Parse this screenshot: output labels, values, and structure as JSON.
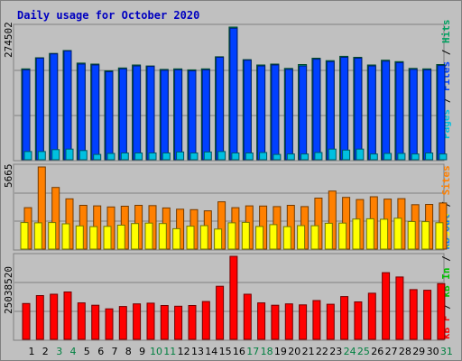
{
  "title": "Daily usage for October 2020",
  "colors": {
    "pages": "#00c0e0",
    "files": "#0040ff",
    "hits": "#00a060",
    "visits": "#ffff00",
    "sites": "#ff8000",
    "kbin": "#00c000",
    "kbout": "#0080ff",
    "kbf": "#ff0000",
    "weekday_label": "#000000",
    "weekend_label": "#008040"
  },
  "legend_top": [
    {
      "text": "Pages",
      "color_key": "pages"
    },
    {
      "text": " / ",
      "color_key": "sep"
    },
    {
      "text": "Files",
      "color_key": "files"
    },
    {
      "text": " / ",
      "color_key": "sep"
    },
    {
      "text": "Hits",
      "color_key": "hits"
    }
  ],
  "legend_middle": [
    {
      "text": "Visits",
      "color_key": "visits"
    },
    {
      "text": " / ",
      "color_key": "sep"
    },
    {
      "text": "Sites",
      "color_key": "sites"
    }
  ],
  "legend_bottom": [
    {
      "text": "kB F",
      "color_key": "kbf"
    },
    {
      "text": " / ",
      "color_key": "sep"
    },
    {
      "text": "kB In",
      "color_key": "kbin"
    },
    {
      "text": " / ",
      "color_key": "sep"
    },
    {
      "text": "kB Out",
      "color_key": "kbout"
    }
  ],
  "chart_data": {
    "type": "bar",
    "title": "Daily usage for October 2020",
    "x": [
      "1",
      "2",
      "3",
      "4",
      "5",
      "6",
      "7",
      "8",
      "9",
      "10",
      "11",
      "12",
      "13",
      "14",
      "15",
      "16",
      "17",
      "18",
      "19",
      "20",
      "21",
      "22",
      "23",
      "24",
      "25",
      "26",
      "27",
      "28",
      "29",
      "30",
      "31"
    ],
    "weekend_days": [
      "3",
      "4",
      "10",
      "11",
      "17",
      "18",
      "24",
      "25",
      "31"
    ],
    "panels": [
      {
        "ymax_label": "274502",
        "ylim": [
          0,
          274502
        ],
        "series": [
          {
            "name": "Hits",
            "color_key": "hits",
            "values": [
              188000,
              211000,
              220000,
              226000,
              200000,
              198000,
              184000,
              190000,
              196000,
              194000,
              187000,
              188000,
              186000,
              188000,
              213000,
              274502,
              207000,
              196000,
              198000,
              189000,
              197000,
              210000,
              205000,
              214000,
              212000,
              196000,
              206000,
              203000,
              189000,
              188000,
              197000
            ]
          },
          {
            "name": "Files",
            "color_key": "files",
            "values": [
              186000,
              210000,
              219000,
              225000,
              198000,
              196000,
              182000,
              188000,
              194000,
              193000,
              185000,
              186000,
              184000,
              186000,
              212000,
              272000,
              206000,
              194000,
              196000,
              187000,
              194000,
              208000,
              203000,
              212000,
              210000,
              194000,
              204000,
              201000,
              187000,
              186000,
              195000
            ]
          },
          {
            "name": "Pages",
            "color_key": "pages",
            "values": [
              17000,
              17000,
              21000,
              22000,
              19000,
              11000,
              13000,
              14000,
              14000,
              14000,
              14000,
              16000,
              14000,
              16000,
              17000,
              14000,
              14000,
              15000,
              11000,
              12000,
              12000,
              15000,
              22000,
              20000,
              22000,
              12000,
              13000,
              13000,
              12000,
              14000,
              12000
            ]
          }
        ]
      },
      {
        "ymax_label": "5665",
        "ylim": [
          0,
          5665
        ],
        "series": [
          {
            "name": "Sites",
            "color_key": "sites",
            "values": [
              2860,
              5665,
              4250,
              3470,
              3020,
              2980,
              2910,
              2960,
              3020,
              3000,
              2840,
              2750,
              2720,
              2640,
              3260,
              2860,
              2980,
              2970,
              2930,
              3020,
              2930,
              3520,
              4000,
              3570,
              3420,
              3610,
              3450,
              3480,
              3060,
              3080,
              3180
            ]
          },
          {
            "name": "Visits",
            "color_key": "visits",
            "values": [
              1830,
              1810,
              1830,
              1740,
              1600,
              1550,
              1570,
              1650,
              1760,
              1790,
              1760,
              1410,
              1580,
              1620,
              1380,
              1810,
              1840,
              1560,
              1690,
              1550,
              1620,
              1610,
              1780,
              1790,
              2070,
              2090,
              2060,
              2130,
              1900,
              1890,
              1820
            ]
          }
        ]
      },
      {
        "ymax_label": "25038520",
        "ylim": [
          0,
          25038520
        ],
        "series": [
          {
            "name": "kB F",
            "color_key": "kbf",
            "values": [
              10800000,
              13200000,
              13600000,
              14300000,
              11000000,
              10300000,
              9200000,
              9900000,
              10700000,
              10900000,
              10200000,
              10000000,
              10200000,
              11400000,
              16000000,
              25038520,
              13600000,
              11000000,
              10300000,
              10700000,
              10400000,
              11700000,
              10600000,
              12900000,
              11300000,
              13900000,
              20100000,
              18800000,
              15000000,
              14800000,
              16800000
            ]
          }
        ]
      }
    ]
  }
}
